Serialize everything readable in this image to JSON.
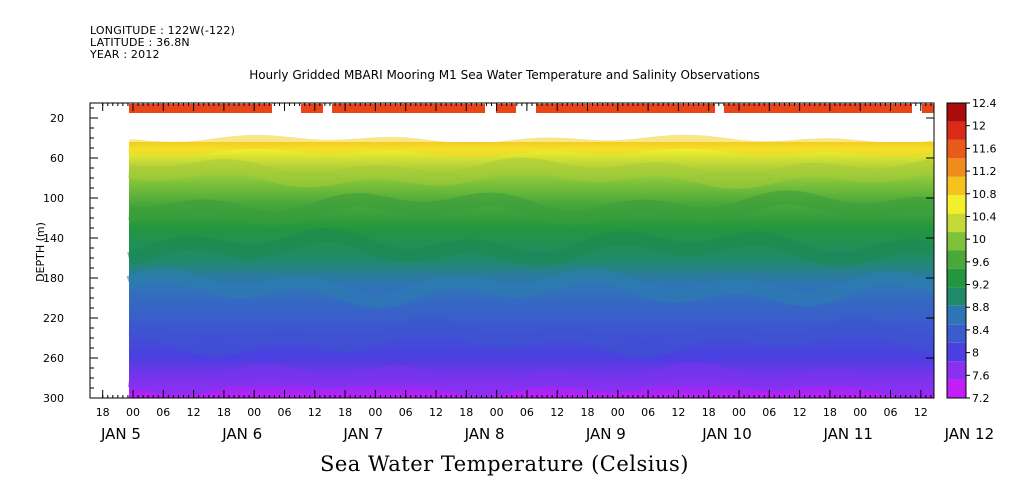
{
  "meta": {
    "longitude": "LONGITUDE : 122W(-122)",
    "latitude": "LATITUDE : 36.8N",
    "year": "YEAR : 2012"
  },
  "chart_data": {
    "type": "heatmap",
    "title": "Hourly Gridded MBARI Mooring M1 Sea Water Temperature and Salinity Observations",
    "xlabel": "Sea Water Temperature (Celsius)",
    "ylabel": "DEPTH (m)",
    "ylim": [
      300,
      5
    ],
    "yticks": [
      20,
      60,
      100,
      140,
      180,
      220,
      260,
      300
    ],
    "x_hour_ticks": [
      "18",
      "00",
      "06",
      "12",
      "18",
      "00",
      "06",
      "12",
      "18",
      "00",
      "06",
      "12",
      "18",
      "00",
      "06",
      "12",
      "18",
      "00",
      "06",
      "12",
      "18",
      "00",
      "06",
      "12",
      "18",
      "00",
      "06",
      "12"
    ],
    "x_day_labels": [
      "JAN 5",
      "JAN 6",
      "JAN 7",
      "JAN 8",
      "JAN 9",
      "JAN 10",
      "JAN 11",
      "JAN 12"
    ],
    "colorbar": {
      "levels": [
        7.2,
        7.6,
        8,
        8.4,
        8.8,
        9.2,
        9.6,
        10,
        10.4,
        10.8,
        11.2,
        11.6,
        12,
        12.4
      ],
      "colors": [
        "#c31dfa",
        "#8b2ff0",
        "#4a3fe0",
        "#3a5ccc",
        "#3074b8",
        "#1f8a6a",
        "#23963e",
        "#4aa83a",
        "#7ec23a",
        "#c4d838",
        "#f2f02a",
        "#f6c21e",
        "#f08c1c",
        "#e85a1a",
        "#dc2a18",
        "#a80c0c"
      ]
    },
    "surface_temperature_approx": 12.1,
    "depth_40m_temperature_approx": 10.8,
    "bottom_temperature_approx": 7.6,
    "data_gaps_at_surface": true
  }
}
